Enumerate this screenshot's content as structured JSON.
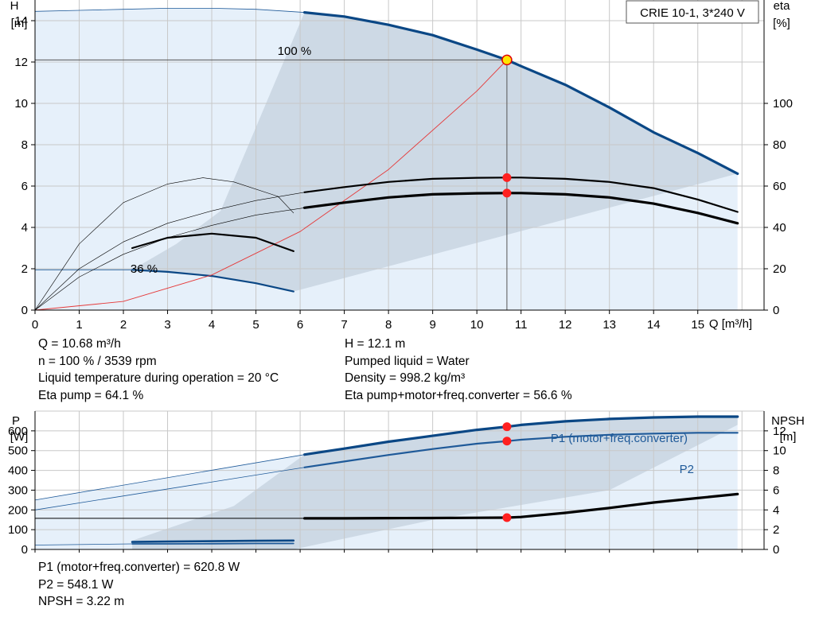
{
  "title_box": "CRIE 10-1, 3*240 V",
  "colors": {
    "curve_blue": "#0a4785",
    "thin_blue": "#1f5a99",
    "region_light": "#e6f0fa",
    "region_dark": "#cdd9e5",
    "grid": "#c8c8c8",
    "system_curve": "#e53a3a",
    "duty_point": "#ff2020",
    "duty_marker_fill": "#ffe600"
  },
  "top_info": {
    "left": [
      "Q = 10.68 m³/h",
      "n = 100 % / 3539 rpm",
      "Liquid temperature during operation = 20 °C",
      "Eta pump = 64.1 %"
    ],
    "right": [
      "H = 12.1 m",
      "Pumped liquid = Water",
      "Density = 998.2 kg/m³",
      "Eta pump+motor+freq.converter = 56.6 %"
    ]
  },
  "bottom_info": [
    "P1 (motor+freq.converter) = 620.8 W",
    "P2 = 548.1 W",
    "NPSH = 3.22 m"
  ],
  "chart_data": [
    {
      "type": "line",
      "title": "CRIE 10-1, 3*240 V",
      "ylabel": "H",
      "ylabel_unit": "[m]",
      "y2label": "eta",
      "y2label_unit": "[%]",
      "xlabel": "Q [m³/h]",
      "xlim": [
        0,
        16.5
      ],
      "ylim": [
        0,
        15
      ],
      "y2lim": [
        0,
        150
      ],
      "xticks": [
        0,
        1,
        2,
        3,
        4,
        5,
        6,
        7,
        8,
        9,
        10,
        11,
        12,
        13,
        14,
        15
      ],
      "yticks": [
        0,
        2,
        4,
        6,
        8,
        10,
        12,
        14
      ],
      "y2ticks": [
        0,
        20,
        40,
        60,
        80,
        100
      ],
      "grid": true,
      "annotations": [
        {
          "text": "100 %",
          "x": 6.3,
          "y": 15.0
        },
        {
          "text": "36 %",
          "x": 2.3,
          "y": 2.2
        }
      ],
      "duty_point": {
        "Q": 10.68,
        "H": 12.1,
        "eta_pump": 64.1,
        "eta_total": 56.6
      },
      "series": [
        {
          "key": "head_max_ext",
          "axis": "left",
          "x": [
            0,
            1,
            2,
            3,
            4,
            5,
            6.1
          ],
          "y": [
            14.45,
            14.5,
            14.55,
            14.6,
            14.6,
            14.55,
            14.4
          ]
        },
        {
          "key": "head_100",
          "axis": "left",
          "x": [
            6.1,
            7,
            8,
            9,
            10,
            10.68,
            11,
            12,
            13,
            14,
            15,
            15.9
          ],
          "y": [
            14.4,
            14.2,
            13.8,
            13.3,
            12.6,
            12.1,
            11.8,
            10.9,
            9.8,
            8.6,
            7.6,
            6.6
          ]
        },
        {
          "key": "head_36",
          "axis": "left",
          "x": [
            2.2,
            3,
            4,
            5,
            5.85
          ],
          "y": [
            1.95,
            1.85,
            1.65,
            1.3,
            0.9
          ]
        },
        {
          "key": "head_36_ext",
          "axis": "left",
          "x": [
            0,
            2.2
          ],
          "y": [
            1.95,
            1.95
          ]
        },
        {
          "key": "system_curve",
          "axis": "left",
          "x": [
            0,
            2,
            4,
            6,
            8,
            10,
            10.68
          ],
          "y": [
            0,
            0.42,
            1.7,
            3.8,
            6.8,
            10.6,
            12.1
          ]
        },
        {
          "key": "eta_total_100",
          "axis": "right",
          "x": [
            6.1,
            7,
            8,
            9,
            10,
            10.68,
            11,
            12,
            13,
            14,
            15,
            15.9
          ],
          "y": [
            49.5,
            52,
            54.5,
            56,
            56.5,
            56.6,
            56.6,
            56,
            54.5,
            51.5,
            47,
            42
          ]
        },
        {
          "key": "eta_pump_100",
          "axis": "right",
          "x": [
            6.1,
            7,
            8,
            9,
            10,
            10.68,
            11,
            12,
            13,
            14,
            15,
            15.9
          ],
          "y": [
            57,
            59.5,
            62,
            63.5,
            64,
            64.1,
            64.1,
            63.5,
            62,
            59,
            53.5,
            47.5
          ]
        },
        {
          "key": "eta_pump_ext",
          "axis": "right",
          "x": [
            0,
            1,
            2,
            3,
            4,
            5,
            6.1
          ],
          "y": [
            0,
            20,
            33,
            42,
            48,
            53,
            57
          ]
        },
        {
          "key": "eta_total_ext",
          "axis": "right",
          "x": [
            0,
            1,
            2,
            3,
            4,
            5,
            6.1
          ],
          "y": [
            0,
            16,
            27,
            35,
            41,
            46,
            49.5
          ]
        },
        {
          "key": "eta_36",
          "axis": "right",
          "x": [
            2.2,
            3,
            4,
            5,
            5.85
          ],
          "y": [
            30,
            35,
            37,
            35,
            28.5
          ]
        },
        {
          "key": "eta_36_ext",
          "axis": "right",
          "x": [
            0,
            1,
            2,
            3,
            3.8,
            4.5,
            5.5,
            5.85
          ],
          "y": [
            0,
            32,
            52,
            61,
            64,
            62,
            55,
            47
          ]
        }
      ]
    },
    {
      "type": "line",
      "ylabel": "P",
      "ylabel_unit": "[W]",
      "y2label": "NPSH",
      "y2label_unit": "[m]",
      "xlim": [
        0,
        16.5
      ],
      "ylim": [
        0,
        700
      ],
      "y2lim": [
        0,
        14
      ],
      "yticks": [
        0,
        100,
        200,
        300,
        400,
        500,
        600
      ],
      "y2ticks": [
        0,
        2,
        4,
        6,
        8,
        10,
        12
      ],
      "grid": true,
      "duty_point": {
        "Q": 10.68,
        "P1": 620.8,
        "P2": 548.1,
        "NPSH": 3.22
      },
      "series": [
        {
          "key": "p1_100",
          "name": "P1 (motor+freq.converter)",
          "axis": "left",
          "x": [
            6.1,
            7,
            8,
            9,
            10,
            10.68,
            11,
            12,
            13,
            14,
            15,
            15.9
          ],
          "y": [
            480,
            510,
            545,
            575,
            605,
            620.8,
            630,
            648,
            660,
            668,
            672,
            672
          ]
        },
        {
          "key": "p2_100",
          "name": "P2",
          "axis": "left",
          "x": [
            6.1,
            7,
            8,
            9,
            10,
            10.68,
            11,
            12,
            13,
            14,
            15,
            15.9
          ],
          "y": [
            415,
            445,
            478,
            508,
            535,
            548.1,
            555,
            570,
            580,
            586,
            590,
            590
          ]
        },
        {
          "key": "p1_ext",
          "axis": "left",
          "x": [
            0,
            6.1
          ],
          "y": [
            250,
            480
          ]
        },
        {
          "key": "p2_ext",
          "axis": "left",
          "x": [
            0,
            6.1
          ],
          "y": [
            200,
            415
          ]
        },
        {
          "key": "p1_36",
          "axis": "left",
          "x": [
            2.2,
            3,
            4,
            5,
            5.85
          ],
          "y": [
            38,
            40,
            42,
            44,
            45
          ]
        },
        {
          "key": "p2_36",
          "axis": "left",
          "x": [
            2.2,
            3,
            4,
            5,
            5.85
          ],
          "y": [
            28,
            28,
            29,
            30,
            30
          ]
        },
        {
          "key": "p_36_ext",
          "axis": "left",
          "x": [
            0,
            2.2
          ],
          "y": [
            22,
            28
          ]
        },
        {
          "key": "npsh_100",
          "axis": "right",
          "x": [
            6.1,
            7,
            8,
            9,
            10,
            10.68,
            11,
            12,
            13,
            14,
            15,
            15.9
          ],
          "y": [
            3.15,
            3.15,
            3.17,
            3.18,
            3.2,
            3.22,
            3.28,
            3.7,
            4.2,
            4.75,
            5.2,
            5.6
          ]
        },
        {
          "key": "npsh_ext",
          "axis": "right",
          "x": [
            0,
            6.1
          ],
          "y": [
            3.15,
            3.15
          ]
        }
      ]
    }
  ]
}
